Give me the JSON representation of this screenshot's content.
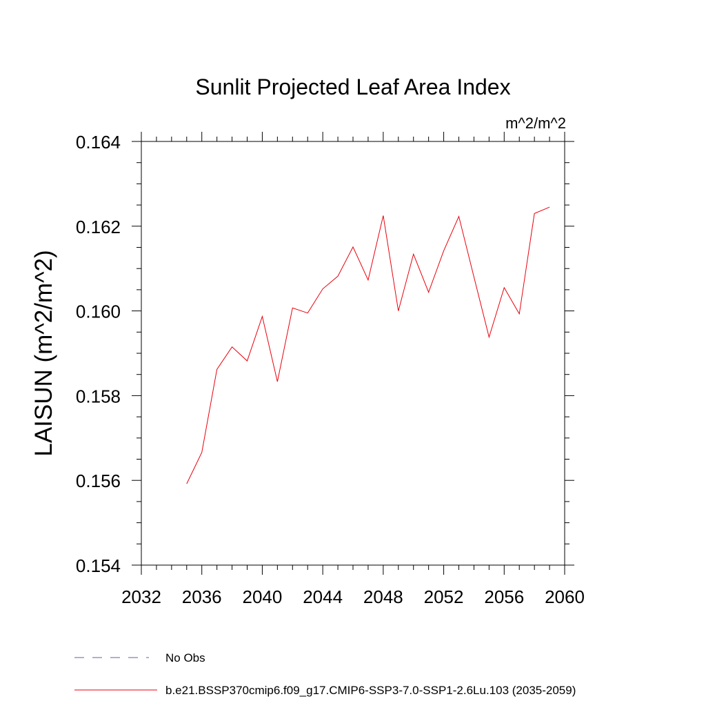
{
  "chart_data": {
    "type": "line",
    "title": "Sunlit Projected Leaf Area Index",
    "units_label": "m^2/m^2",
    "ylabel": "LAISUN  (m^2/m^2)",
    "xlabel": "",
    "xlim": [
      2032,
      2060
    ],
    "ylim": [
      0.154,
      0.164
    ],
    "x_ticks": [
      2032,
      2036,
      2040,
      2044,
      2048,
      2052,
      2056,
      2060
    ],
    "x_tick_labels": [
      "2032",
      "2036",
      "2040",
      "2044",
      "2048",
      "2052",
      "2056",
      "2060"
    ],
    "y_ticks": [
      0.154,
      0.156,
      0.158,
      0.16,
      0.162,
      0.164
    ],
    "y_tick_labels": [
      "0.154",
      "0.156",
      "0.158",
      "0.160",
      "0.162",
      "0.164"
    ],
    "grid": false,
    "legend_position": "bottom",
    "series": [
      {
        "name": "b.e21.BSSP370cmip6.f09_g17.CMIP6-SSP3-7.0-SSP1-2.6Lu.103 (2035-2059)",
        "color": "#e8000b",
        "dash": "solid",
        "x": [
          2035,
          2036,
          2037,
          2038,
          2039,
          2040,
          2041,
          2042,
          2043,
          2044,
          2045,
          2046,
          2047,
          2048,
          2049,
          2050,
          2051,
          2052,
          2053,
          2054,
          2055,
          2056,
          2057,
          2058,
          2059
        ],
        "y": [
          0.15592,
          0.15666,
          0.15862,
          0.15915,
          0.15882,
          0.15987,
          0.15833,
          0.16007,
          0.15995,
          0.16052,
          0.16082,
          0.16151,
          0.16073,
          0.16225,
          0.16,
          0.16134,
          0.16044,
          0.16142,
          0.16223,
          0.1608,
          0.15938,
          0.16055,
          0.15993,
          0.1623,
          0.16245
        ]
      }
    ],
    "legend": [
      {
        "label": "No Obs",
        "color": "#6b5aa6",
        "dash": "dashed"
      },
      {
        "label": "b.e21.BSSP370cmip6.f09_g17.CMIP6-SSP3-7.0-SSP1-2.6Lu.103 (2035-2059)",
        "color": "#e8000b",
        "dash": "solid"
      }
    ]
  }
}
